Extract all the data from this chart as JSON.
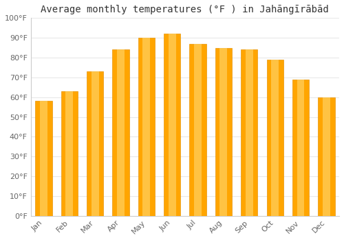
{
  "title": "Average monthly temperatures (°F ) in Jahāngīrābād",
  "months": [
    "Jan",
    "Feb",
    "Mar",
    "Apr",
    "May",
    "Jun",
    "Jul",
    "Aug",
    "Sep",
    "Oct",
    "Nov",
    "Dec"
  ],
  "values": [
    58,
    63,
    73,
    84,
    90,
    92,
    87,
    85,
    84,
    79,
    69,
    60
  ],
  "bar_color_main": "#FFA500",
  "bar_color_light": "#FFD060",
  "ylim": [
    0,
    100
  ],
  "yticks": [
    0,
    10,
    20,
    30,
    40,
    50,
    60,
    70,
    80,
    90,
    100
  ],
  "ylabel_suffix": "°F",
  "background_color": "#ffffff",
  "grid_color": "#e8e8e8",
  "title_fontsize": 10,
  "tick_fontsize": 8,
  "tick_color": "#666666",
  "title_color": "#333333"
}
